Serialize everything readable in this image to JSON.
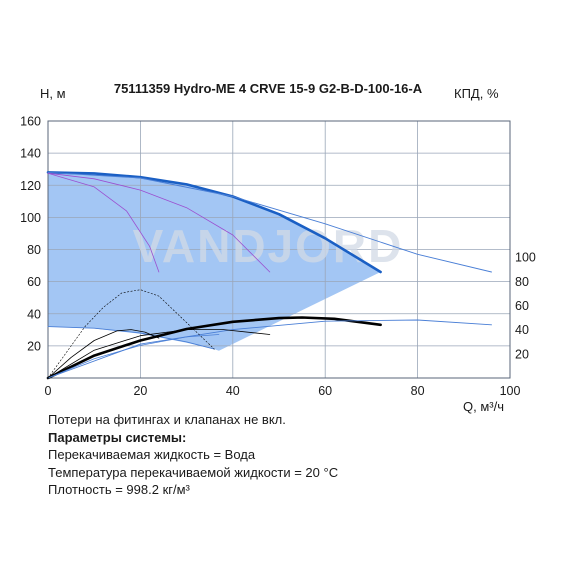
{
  "chart_data": {
    "type": "line",
    "title": "75111359 Hydro-ME 4 CRVE 15-9 G2-B-D-100-16-A",
    "ylabel": "H, м",
    "y2label": "КПД, %",
    "xlabel": "Q, м³/ч",
    "xlim": [
      0,
      100
    ],
    "ylim": [
      0,
      160
    ],
    "y2lim": [
      0,
      110
    ],
    "xticks": [
      "0",
      "20",
      "40",
      "60",
      "80",
      "100"
    ],
    "yticks": [
      "20",
      "40",
      "60",
      "80",
      "100",
      "120",
      "140",
      "160"
    ],
    "y2ticks": [
      "20",
      "40",
      "60",
      "80",
      "100"
    ],
    "grid": true,
    "watermark": "VANDJORD",
    "operating_area": {
      "upper": [
        [
          0,
          128
        ],
        [
          10,
          127.4
        ],
        [
          20,
          125
        ],
        [
          30,
          120.5
        ],
        [
          40,
          113
        ],
        [
          50,
          102
        ],
        [
          60,
          87
        ],
        [
          72,
          66
        ]
      ],
      "lower": [
        [
          72,
          66
        ],
        [
          37,
          17
        ],
        [
          36,
          18
        ],
        [
          30,
          22
        ],
        [
          20,
          27.5
        ],
        [
          10,
          30.8
        ],
        [
          0,
          32
        ]
      ]
    },
    "series": [
      {
        "role": "head-max",
        "color": "#1a5fc4",
        "width": 2.6,
        "points": [
          [
            0,
            128
          ],
          [
            10,
            127.4
          ],
          [
            20,
            125
          ],
          [
            30,
            120.5
          ],
          [
            40,
            113
          ],
          [
            50,
            102
          ],
          [
            60,
            87
          ],
          [
            72,
            66
          ]
        ]
      },
      {
        "role": "head-ext",
        "color": "#4a7fd6",
        "width": 0.9,
        "points": [
          [
            0,
            128
          ],
          [
            20,
            124.5
          ],
          [
            40,
            113
          ],
          [
            60,
            96
          ],
          [
            80,
            77
          ],
          [
            96,
            66
          ]
        ]
      },
      {
        "role": "head-min",
        "color": "#4a7fd6",
        "width": 0.9,
        "points": [
          [
            0,
            32
          ],
          [
            10,
            31
          ],
          [
            20,
            28
          ],
          [
            30,
            22.5
          ],
          [
            36,
            18
          ]
        ]
      },
      {
        "role": "head-mid",
        "color": "#9b4fd0",
        "width": 0.8,
        "points": [
          [
            0,
            127.5
          ],
          [
            10,
            119
          ],
          [
            17,
            104
          ],
          [
            22,
            82
          ],
          [
            24,
            66
          ]
        ]
      },
      {
        "role": "head-mid",
        "color": "#9b4fd0",
        "width": 0.8,
        "points": [
          [
            0,
            127.5
          ],
          [
            10,
            124
          ],
          [
            20,
            117
          ],
          [
            30,
            106
          ],
          [
            40,
            89
          ],
          [
            48,
            66
          ]
        ]
      },
      {
        "role": "eff-max",
        "color": "#000000",
        "width": 2.6,
        "axis": "y2",
        "points": [
          [
            0,
            0
          ],
          [
            10,
            18.5
          ],
          [
            20,
            31
          ],
          [
            30,
            40.5
          ],
          [
            40,
            46.5
          ],
          [
            50,
            49.5
          ],
          [
            55,
            50
          ],
          [
            62,
            49
          ],
          [
            72,
            44
          ]
        ]
      },
      {
        "role": "eff-ext",
        "color": "#4a7fd6",
        "width": 0.9,
        "axis": "y2",
        "points": [
          [
            0,
            0
          ],
          [
            20,
            28
          ],
          [
            40,
            40
          ],
          [
            60,
            47
          ],
          [
            80,
            48
          ],
          [
            96,
            44
          ]
        ]
      },
      {
        "role": "eff-low",
        "color": "#000000",
        "width": 0.8,
        "axis": "y2",
        "points": [
          [
            0,
            0
          ],
          [
            5,
            17
          ],
          [
            10,
            31
          ],
          [
            15,
            39
          ],
          [
            18,
            40
          ],
          [
            21,
            38
          ],
          [
            24,
            33
          ]
        ]
      },
      {
        "role": "eff-low",
        "color": "#000000",
        "width": 0.8,
        "axis": "y2",
        "points": [
          [
            0,
            0
          ],
          [
            10,
            23
          ],
          [
            20,
            35
          ],
          [
            30,
            40
          ],
          [
            38,
            40
          ],
          [
            48,
            36
          ]
        ]
      },
      {
        "role": "eff-low",
        "color": "#4a7fd6",
        "width": 0.8,
        "axis": "y2",
        "points": [
          [
            0,
            0
          ],
          [
            10,
            16
          ],
          [
            20,
            27
          ],
          [
            30,
            34
          ],
          [
            37,
            36
          ]
        ]
      },
      {
        "role": "npsh",
        "color": "#000000",
        "width": 0.6,
        "dash": "1.5,2",
        "points": [
          [
            0,
            0
          ],
          [
            4,
            16
          ],
          [
            8,
            32
          ],
          [
            12,
            44
          ],
          [
            16,
            53
          ],
          [
            20,
            55
          ],
          [
            24,
            51
          ],
          [
            28,
            40
          ],
          [
            36,
            18
          ]
        ]
      }
    ]
  },
  "notes": {
    "line1": "Потери на фитингах и клапанах не вкл.",
    "heading": "Параметры системы:",
    "line2": "Перекачиваемая жидкость = Вода",
    "line3": "Температура перекачиваемой жидкости = 20 °C",
    "line4": "Плотность = 998.2 кг/м³"
  },
  "colors": {
    "area_fill": "#a3c6f4",
    "grid": "#9aa6b8",
    "watermark": "#d2dae6"
  }
}
